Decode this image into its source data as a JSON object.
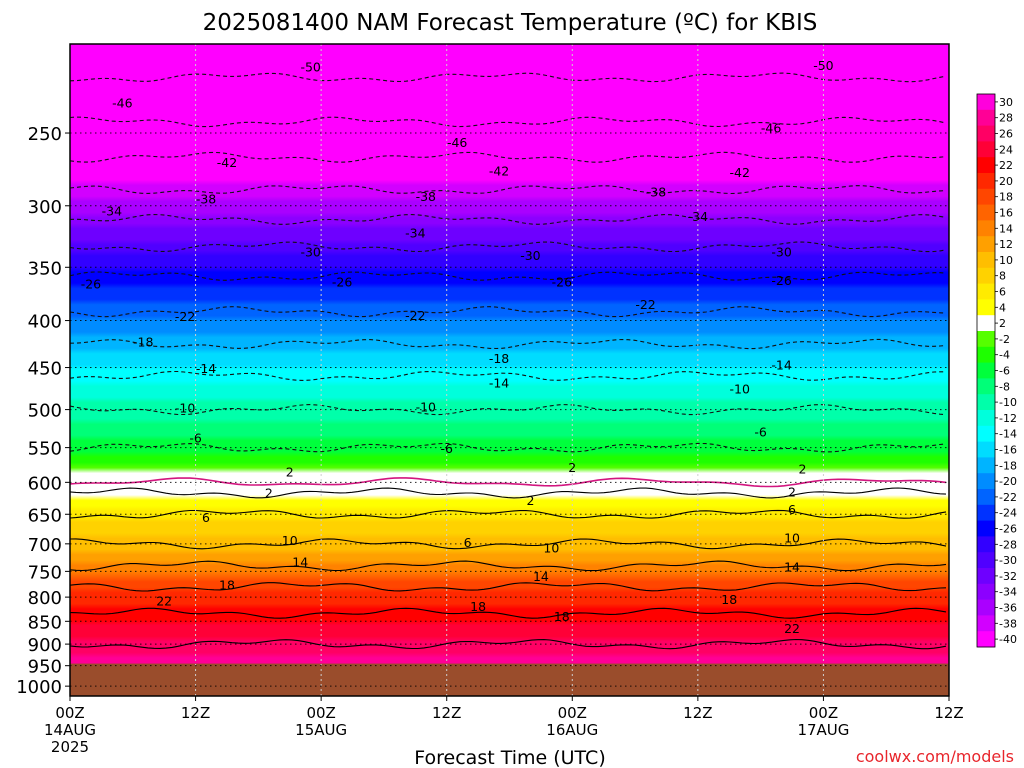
{
  "chart_data": {
    "type": "heatmap",
    "title": "2025081400 NAM Forecast Temperature (ºC) for KBIS",
    "xlabel": "Forecast Time (UTC)",
    "credit": "coolwx.com/models",
    "x_ticks": [
      {
        "hour": 0,
        "line1": "00Z",
        "line2": "14AUG",
        "line3": "2025"
      },
      {
        "hour": 12,
        "line1": "12Z",
        "line2": "",
        "line3": ""
      },
      {
        "hour": 24,
        "line1": "00Z",
        "line2": "15AUG",
        "line3": ""
      },
      {
        "hour": 36,
        "line1": "12Z",
        "line2": "",
        "line3": ""
      },
      {
        "hour": 48,
        "line1": "00Z",
        "line2": "16AUG",
        "line3": ""
      },
      {
        "hour": 60,
        "line1": "12Z",
        "line2": "",
        "line3": ""
      },
      {
        "hour": 72,
        "line1": "00Z",
        "line2": "17AUG",
        "line3": ""
      },
      {
        "hour": 84,
        "line1": "12Z",
        "line2": "",
        "line3": ""
      }
    ],
    "x_range": [
      0,
      84
    ],
    "y_ticks": [
      "250",
      "300",
      "350",
      "400",
      "450",
      "500",
      "550",
      "600",
      "650",
      "700",
      "750",
      "800",
      "850",
      "900",
      "950",
      "1000"
    ],
    "y_range_hpa": [
      200,
      1025
    ],
    "y_scale": "log",
    "ground_below_hpa": 945,
    "ground_color": "#9a4d2c",
    "colorbar": {
      "labels": [
        "30",
        "28",
        "26",
        "24",
        "22",
        "20",
        "18",
        "16",
        "14",
        "12",
        "10",
        "8",
        "6",
        "4",
        "2",
        "-2",
        "-4",
        "-6",
        "-8",
        "-10",
        "-12",
        "-14",
        "-16",
        "-18",
        "-20",
        "-22",
        "-24",
        "-26",
        "-28",
        "-30",
        "-32",
        "-34",
        "-36",
        "-38",
        "-40"
      ],
      "colors": [
        "#ff00dc",
        "#ff0096",
        "#ff0064",
        "#ff0037",
        "#ff0000",
        "#ff2800",
        "#ff4600",
        "#ff6400",
        "#ff8200",
        "#ffa000",
        "#ffbe00",
        "#ffd200",
        "#ffeb00",
        "#ffff00",
        "#ffffff",
        "#55ff00",
        "#1eff00",
        "#00ff3c",
        "#00ff78",
        "#00ffaa",
        "#00ffdc",
        "#00ffff",
        "#00dcff",
        "#00b4ff",
        "#008cff",
        "#0064ff",
        "#0032ff",
        "#0000ff",
        "#3200ff",
        "#5000ff",
        "#6e00ff",
        "#8c00ff",
        "#aa00ff",
        "#d200ff",
        "#ff00ff"
      ]
    },
    "temperature_profile": {
      "pressures_hpa": [
        200,
        250,
        300,
        350,
        400,
        450,
        500,
        550,
        600,
        650,
        700,
        750,
        800,
        850,
        900,
        950
      ],
      "mean_temperature_c": [
        -53,
        -45,
        -36,
        -27,
        -21,
        -15,
        -10,
        -6,
        0,
        6,
        10,
        15,
        20,
        23,
        26,
        28
      ]
    },
    "contour_labels": [
      {
        "text": "-50",
        "hour": 23,
        "hpa": 212
      },
      {
        "text": "-50",
        "hour": 72,
        "hpa": 211
      },
      {
        "text": "-46",
        "hour": 5,
        "hpa": 232
      },
      {
        "text": "-46",
        "hour": 37,
        "hpa": 256
      },
      {
        "text": "-46",
        "hour": 67,
        "hpa": 247
      },
      {
        "text": "-42",
        "hour": 15,
        "hpa": 269
      },
      {
        "text": "-42",
        "hour": 41,
        "hpa": 275
      },
      {
        "text": "-42",
        "hour": 64,
        "hpa": 276
      },
      {
        "text": "-38",
        "hour": 13,
        "hpa": 295
      },
      {
        "text": "-38",
        "hour": 34,
        "hpa": 293
      },
      {
        "text": "-38",
        "hour": 56,
        "hpa": 290
      },
      {
        "text": "-34",
        "hour": 4,
        "hpa": 304
      },
      {
        "text": "-34",
        "hour": 33,
        "hpa": 321
      },
      {
        "text": "-34",
        "hour": 60,
        "hpa": 308
      },
      {
        "text": "-30",
        "hour": 23,
        "hpa": 337
      },
      {
        "text": "-30",
        "hour": 44,
        "hpa": 340
      },
      {
        "text": "-30",
        "hour": 68,
        "hpa": 337
      },
      {
        "text": "-26",
        "hour": 2,
        "hpa": 365
      },
      {
        "text": "-26",
        "hour": 26,
        "hpa": 363
      },
      {
        "text": "-26",
        "hour": 47,
        "hpa": 363
      },
      {
        "text": "-26",
        "hour": 68,
        "hpa": 362
      },
      {
        "text": "-22",
        "hour": 11,
        "hpa": 396
      },
      {
        "text": "-22",
        "hour": 33,
        "hpa": 395
      },
      {
        "text": "-22",
        "hour": 55,
        "hpa": 384
      },
      {
        "text": "-18",
        "hour": 7,
        "hpa": 422
      },
      {
        "text": "-18",
        "hour": 41,
        "hpa": 440
      },
      {
        "text": "-14",
        "hour": 13,
        "hpa": 451
      },
      {
        "text": "-14",
        "hour": 41,
        "hpa": 468
      },
      {
        "text": "-14",
        "hour": 68,
        "hpa": 447
      },
      {
        "text": "-10",
        "hour": 11,
        "hpa": 498
      },
      {
        "text": "-10",
        "hour": 34,
        "hpa": 497
      },
      {
        "text": "-10",
        "hour": 64,
        "hpa": 475
      },
      {
        "text": "-6",
        "hour": 12,
        "hpa": 537
      },
      {
        "text": "-6",
        "hour": 36,
        "hpa": 551
      },
      {
        "text": "-6",
        "hour": 66,
        "hpa": 529
      },
      {
        "text": "2",
        "hour": 21,
        "hpa": 585
      },
      {
        "text": "2",
        "hour": 48,
        "hpa": 578
      },
      {
        "text": "2",
        "hour": 70,
        "hpa": 580
      },
      {
        "text": "2",
        "hour": 19,
        "hpa": 616
      },
      {
        "text": "2",
        "hour": 44,
        "hpa": 628
      },
      {
        "text": "2",
        "hour": 69,
        "hpa": 615
      },
      {
        "text": "6",
        "hour": 13,
        "hpa": 655
      },
      {
        "text": "6",
        "hour": 38,
        "hpa": 698
      },
      {
        "text": "6",
        "hour": 69,
        "hpa": 642
      },
      {
        "text": "10",
        "hour": 21,
        "hpa": 694
      },
      {
        "text": "10",
        "hour": 46,
        "hpa": 707
      },
      {
        "text": "10",
        "hour": 69,
        "hpa": 690
      },
      {
        "text": "14",
        "hour": 22,
        "hpa": 733
      },
      {
        "text": "14",
        "hour": 45,
        "hpa": 760
      },
      {
        "text": "14",
        "hour": 69,
        "hpa": 742
      },
      {
        "text": "18",
        "hour": 15,
        "hpa": 776
      },
      {
        "text": "18",
        "hour": 39,
        "hpa": 819
      },
      {
        "text": "18",
        "hour": 47,
        "hpa": 840
      },
      {
        "text": "18",
        "hour": 63,
        "hpa": 805
      },
      {
        "text": "22",
        "hour": 9,
        "hpa": 808
      },
      {
        "text": "22",
        "hour": 69,
        "hpa": 866
      }
    ]
  }
}
